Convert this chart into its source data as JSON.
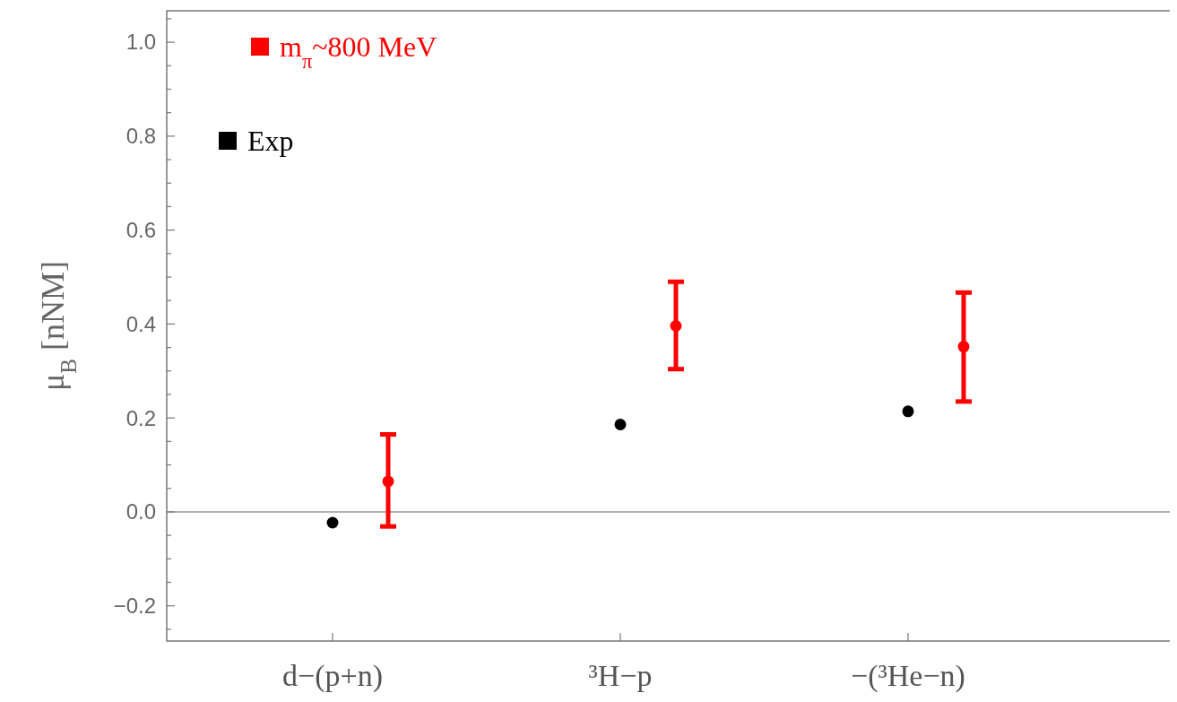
{
  "chart_data": {
    "type": "scatter",
    "ylabel": "μ$_{B}$   [nNM]",
    "categories": [
      "d−(p+n)",
      "³H−p",
      "−(³He−n)"
    ],
    "series": [
      {
        "name": "Exp",
        "color": "#000000",
        "values": [
          -0.023,
          0.186,
          0.214
        ]
      },
      {
        "name": "m$_{π}$~800 MeV",
        "color": "#ff0000",
        "values": [
          0.065,
          0.396,
          0.352
        ],
        "errors": [
          [
            -0.031,
            0.165
          ],
          [
            0.304,
            0.49
          ],
          [
            0.235,
            0.467
          ]
        ]
      }
    ],
    "ylim": [
      -0.275,
      1.067
    ],
    "yticks": [
      {
        "value": -0.25,
        "label": null
      },
      {
        "value": -0.2,
        "label": "−0.2"
      },
      {
        "value": -0.15,
        "label": null
      },
      {
        "value": -0.1,
        "label": null
      },
      {
        "value": -0.05,
        "label": null
      },
      {
        "value": 0,
        "label": "0.0"
      },
      {
        "value": 0.05,
        "label": null
      },
      {
        "value": 0.1,
        "label": null
      },
      {
        "value": 0.15,
        "label": null
      },
      {
        "value": 0.2,
        "label": "0.2"
      },
      {
        "value": 0.25,
        "label": null
      },
      {
        "value": 0.3,
        "label": null
      },
      {
        "value": 0.35,
        "label": null
      },
      {
        "value": 0.4,
        "label": "0.4"
      },
      {
        "value": 0.45,
        "label": null
      },
      {
        "value": 0.5,
        "label": null
      },
      {
        "value": 0.55,
        "label": null
      },
      {
        "value": 0.6,
        "label": "0.6"
      },
      {
        "value": 0.65,
        "label": null
      },
      {
        "value": 0.7,
        "label": null
      },
      {
        "value": 0.75,
        "label": null
      },
      {
        "value": 0.8,
        "label": "0.8"
      },
      {
        "value": 0.85,
        "label": null
      },
      {
        "value": 0.9,
        "label": null
      },
      {
        "value": 0.95,
        "label": null
      },
      {
        "value": 1.0,
        "label": "1.0"
      },
      {
        "value": 1.05,
        "label": null
      }
    ],
    "ref_lines": [
      {
        "axis": "y",
        "value": 0,
        "color": "#999999"
      }
    ],
    "legend": "top left",
    "marker": "circle"
  }
}
